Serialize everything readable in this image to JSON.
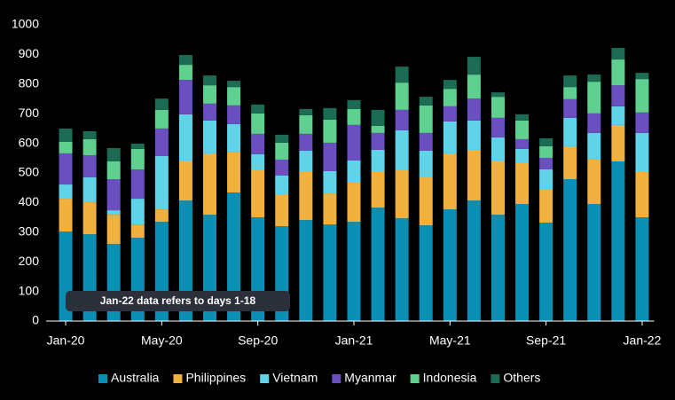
{
  "chart_data": {
    "type": "stacked_bar",
    "categories": [
      "Jan-20",
      null,
      null,
      null,
      "May-20",
      null,
      null,
      null,
      "Sep-20",
      null,
      null,
      null,
      "Jan-21",
      null,
      null,
      null,
      "May-21",
      null,
      null,
      null,
      "Sep-21",
      null,
      null,
      null,
      "Jan-22"
    ],
    "series": [
      {
        "name": "Australia",
        "color": "#0a8fb5",
        "values": [
          302,
          293,
          260,
          281,
          335,
          407,
          359,
          434,
          350,
          320,
          341,
          326,
          335,
          383,
          347,
          323,
          377,
          407,
          359,
          395,
          332,
          479,
          395,
          539,
          350
        ]
      },
      {
        "name": "Philippines",
        "color": "#f0b13e",
        "values": [
          111,
          108,
          99,
          45,
          42,
          135,
          207,
          135,
          162,
          108,
          162,
          105,
          132,
          123,
          162,
          165,
          189,
          171,
          183,
          138,
          114,
          111,
          150,
          123,
          153
        ]
      },
      {
        "name": "Vietnam",
        "color": "#5fd4e8",
        "values": [
          48,
          84,
          15,
          87,
          180,
          156,
          111,
          96,
          51,
          63,
          72,
          75,
          75,
          72,
          135,
          87,
          108,
          99,
          78,
          48,
          66,
          96,
          90,
          63,
          132
        ]
      },
      {
        "name": "Myanmar",
        "color": "#6a4fc0",
        "values": [
          105,
          75,
          105,
          99,
          93,
          116,
          57,
          63,
          69,
          54,
          57,
          96,
          120,
          57,
          69,
          60,
          51,
          74,
          66,
          33,
          39,
          63,
          66,
          71,
          69
        ]
      },
      {
        "name": "Indonesia",
        "color": "#5fd08f",
        "values": [
          39,
          54,
          60,
          69,
          63,
          51,
          62,
          62,
          69,
          57,
          63,
          78,
          54,
          24,
          92,
          93,
          59,
          81,
          71,
          63,
          39,
          41,
          107,
          87,
          113
        ]
      },
      {
        "name": "Others",
        "color": "#1b6b55",
        "values": [
          45,
          27,
          45,
          18,
          38,
          33,
          33,
          21,
          30,
          27,
          21,
          39,
          30,
          54,
          54,
          29,
          30,
          60,
          15,
          21,
          27,
          39,
          24,
          39,
          21
        ]
      }
    ],
    "ylim": [
      0,
      1000
    ],
    "yticks": [
      0,
      100,
      200,
      300,
      400,
      500,
      600,
      700,
      800,
      900,
      1000
    ],
    "annotation": "Jan-22 data refers to days 1-18",
    "grid": false
  }
}
